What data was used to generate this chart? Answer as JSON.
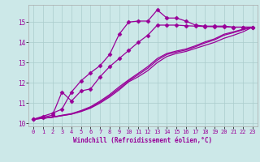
{
  "xlabel": "Windchill (Refroidissement éolien,°C)",
  "bg_color": "#cce8e8",
  "line_color": "#990099",
  "grid_color": "#aacccc",
  "xmin": 0,
  "xmax": 23,
  "ymin": 10,
  "ymax": 15.8,
  "yticks": [
    10,
    11,
    12,
    13,
    14,
    15
  ],
  "xticks": [
    0,
    1,
    2,
    3,
    4,
    5,
    6,
    7,
    8,
    9,
    10,
    11,
    12,
    13,
    14,
    15,
    16,
    17,
    18,
    19,
    20,
    21,
    22,
    23
  ],
  "curves": [
    {
      "x": [
        0,
        1,
        2,
        3,
        4,
        5,
        6,
        7,
        8,
        9,
        10,
        11,
        12,
        13,
        14,
        15,
        16,
        17,
        18,
        19,
        20,
        21,
        22,
        23
      ],
      "y": [
        10.2,
        10.35,
        10.5,
        10.7,
        11.55,
        12.1,
        12.5,
        12.85,
        13.4,
        14.4,
        15.0,
        15.05,
        15.05,
        15.6,
        15.2,
        15.2,
        15.05,
        14.85,
        14.8,
        14.8,
        14.8,
        14.75,
        14.75,
        14.75
      ],
      "marker": "D",
      "ms": 2.5,
      "lw": 0.9
    },
    {
      "x": [
        0,
        1,
        2,
        3,
        4,
        5,
        6,
        7,
        8,
        9,
        10,
        11,
        12,
        13,
        14,
        15,
        16,
        17,
        18,
        19,
        20,
        21,
        22,
        23
      ],
      "y": [
        10.2,
        10.3,
        10.4,
        11.55,
        11.1,
        11.6,
        11.7,
        12.3,
        12.8,
        13.2,
        13.6,
        14.0,
        14.35,
        14.85,
        14.85,
        14.85,
        14.82,
        14.8,
        14.78,
        14.77,
        14.76,
        14.75,
        14.75,
        14.75
      ],
      "marker": "D",
      "ms": 2.5,
      "lw": 0.9
    },
    {
      "x": [
        0,
        1,
        2,
        3,
        4,
        5,
        6,
        7,
        8,
        9,
        10,
        11,
        12,
        13,
        14,
        15,
        16,
        17,
        18,
        19,
        20,
        21,
        22,
        23
      ],
      "y": [
        10.2,
        10.25,
        10.3,
        10.38,
        10.45,
        10.58,
        10.75,
        11.0,
        11.3,
        11.65,
        12.05,
        12.3,
        12.6,
        13.0,
        13.3,
        13.45,
        13.55,
        13.7,
        13.85,
        14.0,
        14.2,
        14.35,
        14.52,
        14.75
      ],
      "marker": null,
      "ms": 0,
      "lw": 0.9
    },
    {
      "x": [
        0,
        1,
        2,
        3,
        4,
        5,
        6,
        7,
        8,
        9,
        10,
        11,
        12,
        13,
        14,
        15,
        16,
        17,
        18,
        19,
        20,
        21,
        22,
        23
      ],
      "y": [
        10.2,
        10.25,
        10.3,
        10.38,
        10.46,
        10.6,
        10.78,
        11.05,
        11.36,
        11.72,
        12.1,
        12.4,
        12.72,
        13.12,
        13.4,
        13.52,
        13.62,
        13.78,
        13.97,
        14.12,
        14.35,
        14.48,
        14.62,
        14.75
      ],
      "marker": null,
      "ms": 0,
      "lw": 0.9
    },
    {
      "x": [
        0,
        1,
        2,
        3,
        4,
        5,
        6,
        7,
        8,
        9,
        10,
        11,
        12,
        13,
        14,
        15,
        16,
        17,
        18,
        19,
        20,
        21,
        22,
        23
      ],
      "y": [
        10.2,
        10.25,
        10.31,
        10.4,
        10.48,
        10.63,
        10.82,
        11.1,
        11.42,
        11.8,
        12.15,
        12.47,
        12.8,
        13.2,
        13.45,
        13.57,
        13.67,
        13.83,
        14.02,
        14.17,
        14.4,
        14.52,
        14.65,
        14.75
      ],
      "marker": null,
      "ms": 0,
      "lw": 0.9
    }
  ]
}
